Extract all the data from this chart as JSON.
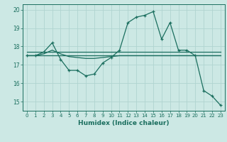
{
  "xlabel": "Humidex (Indice chaleur)",
  "x_values": [
    0,
    1,
    2,
    3,
    4,
    5,
    6,
    7,
    8,
    9,
    10,
    11,
    12,
    13,
    14,
    15,
    16,
    17,
    18,
    19,
    20,
    21,
    22,
    23
  ],
  "line1_y": [
    17.5,
    17.5,
    17.7,
    18.2,
    17.3,
    16.7,
    16.7,
    16.4,
    16.5,
    17.1,
    17.4,
    17.8,
    19.3,
    19.6,
    19.7,
    19.9,
    18.4,
    19.3,
    17.8,
    17.8,
    17.5,
    15.6,
    15.3,
    14.8
  ],
  "line2_y": [
    17.5,
    17.5,
    17.5,
    17.5,
    17.5,
    17.5,
    17.5,
    17.5,
    17.5,
    17.5,
    17.5,
    17.5,
    17.5,
    17.5,
    17.5,
    17.5,
    17.5,
    17.5,
    17.5,
    17.5,
    17.5,
    17.5,
    17.5,
    17.5
  ],
  "line3_y": [
    17.7,
    17.7,
    17.7,
    17.7,
    17.7,
    17.7,
    17.7,
    17.7,
    17.7,
    17.7,
    17.7,
    17.7,
    17.7,
    17.7,
    17.7,
    17.7,
    17.7,
    17.7,
    17.7,
    17.7,
    17.7,
    17.7,
    17.7,
    17.7
  ],
  "line4_y": [
    17.5,
    17.5,
    17.6,
    17.8,
    17.6,
    17.45,
    17.4,
    17.35,
    17.35,
    17.4,
    17.45,
    17.5,
    17.5,
    17.5,
    17.5,
    17.5,
    17.5,
    17.5,
    17.5,
    17.5,
    17.5,
    17.5,
    17.5,
    17.5
  ],
  "line_color": "#1a6e5e",
  "bg_color": "#cce8e4",
  "grid_color": "#b0d4d0",
  "ylim": [
    14.5,
    20.3
  ],
  "yticks": [
    15,
    16,
    17,
    18,
    19,
    20
  ],
  "xlim": [
    -0.5,
    23.5
  ]
}
